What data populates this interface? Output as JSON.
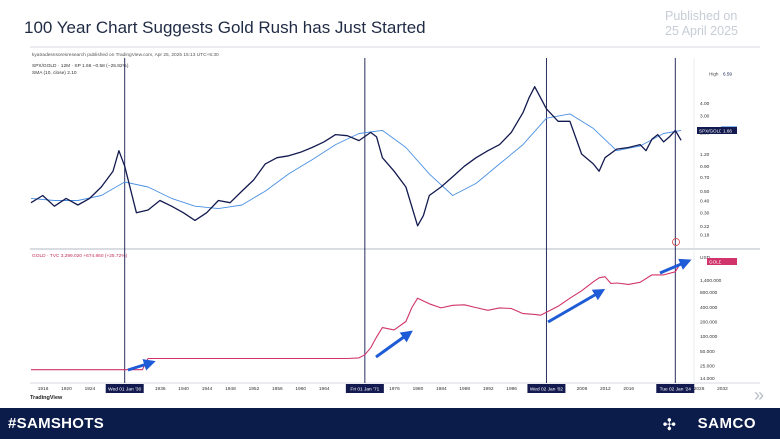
{
  "headline": "100 Year Chart Suggests Gold Rush has Just Started",
  "published_line1": "Published on",
  "published_line2": "25 April 2025",
  "footer": {
    "hashtag": "#SAMSHOTS",
    "brand": "SAMCO",
    "brand_icon": "samco-logo-icon",
    "next_icon": "double-chevron-right-icon"
  },
  "colors": {
    "navy": "#131a4f",
    "sma": "#4a90e2",
    "gold": "#d0346b",
    "arrow": "#1e5bd6",
    "footer": "#0b1b4a"
  },
  "chart_data": [
    {
      "type": "line",
      "meta_line": "kyatradesnsoresresearch published on TradingView.com, Apr 25, 2025 15:13 UTC+5:30",
      "legend": [
        "SPX/GOLD · 12M · SP  1.66  −0.58 (−25.82%)",
        "SMA (10, close)  2.10"
      ],
      "yaxis": {
        "scale": "log",
        "ticks": [
          "4.00",
          "3.00",
          "2.00",
          "1.20",
          "0.90",
          "0.70",
          "0.50",
          "0.40",
          "0.30",
          "0.22",
          "0.18"
        ],
        "ylim": [
          0.15,
          6.59
        ]
      },
      "badges": {
        "high_label": "High",
        "high_value": "6.59",
        "series_label": "SPX/GOLD",
        "series_value": "1.66",
        "sma_value": "2.10"
      },
      "series": [
        {
          "name": "SPX/GOLD",
          "x": [
            1914,
            1916,
            1918,
            1920,
            1922,
            1924,
            1926,
            1928,
            1929,
            1930,
            1932,
            1934,
            1936,
            1938,
            1940,
            1942,
            1944,
            1946,
            1948,
            1950,
            1952,
            1954,
            1956,
            1958,
            1960,
            1962,
            1964,
            1966,
            1968,
            1970,
            1972,
            1973,
            1974,
            1976,
            1978,
            1980,
            1981,
            1982,
            1984,
            1986,
            1988,
            1990,
            1992,
            1994,
            1996,
            1998,
            1999,
            2000,
            2002,
            2004,
            2006,
            2008,
            2010,
            2011,
            2012,
            2014,
            2016,
            2018,
            2019,
            2020,
            2021,
            2022,
            2023,
            2024,
            2025
          ],
          "values": [
            0.38,
            0.45,
            0.35,
            0.42,
            0.36,
            0.42,
            0.55,
            0.8,
            1.3,
            0.9,
            0.3,
            0.32,
            0.4,
            0.35,
            0.3,
            0.25,
            0.3,
            0.4,
            0.38,
            0.5,
            0.65,
            0.95,
            1.1,
            1.15,
            1.25,
            1.4,
            1.6,
            1.9,
            1.85,
            1.65,
            2.0,
            1.8,
            1.1,
            0.8,
            0.55,
            0.22,
            0.28,
            0.45,
            0.55,
            0.7,
            0.9,
            1.1,
            1.3,
            1.5,
            2.0,
            3.2,
            4.5,
            5.9,
            3.5,
            2.6,
            2.6,
            1.2,
            0.95,
            0.8,
            1.1,
            1.35,
            1.4,
            1.5,
            1.3,
            1.7,
            1.9,
            1.6,
            1.8,
            2.1,
            1.66
          ]
        },
        {
          "name": "SMA (10, close)",
          "x": [
            1914,
            1918,
            1922,
            1926,
            1930,
            1934,
            1938,
            1942,
            1946,
            1950,
            1954,
            1958,
            1962,
            1966,
            1970,
            1974,
            1978,
            1982,
            1986,
            1990,
            1994,
            1998,
            2002,
            2006,
            2010,
            2014,
            2018,
            2022,
            2025
          ],
          "values": [
            0.42,
            0.4,
            0.4,
            0.45,
            0.62,
            0.55,
            0.42,
            0.35,
            0.33,
            0.36,
            0.5,
            0.75,
            1.05,
            1.5,
            1.95,
            2.1,
            1.4,
            0.75,
            0.45,
            0.6,
            0.95,
            1.5,
            2.8,
            3.1,
            2.2,
            1.3,
            1.45,
            1.95,
            2.1
          ]
        }
      ]
    },
    {
      "type": "line",
      "legend": "GOLD · TVC  3,299.020  +674.860 (+25.72%)",
      "yaxis": {
        "scale": "log",
        "ticks": [
          "USD",
          "1,400.000",
          "800.000",
          "400.000",
          "200.000",
          "100.000",
          "50.000",
          "25.000",
          "14.000"
        ],
        "ylim": [
          14,
          3299
        ]
      },
      "badges": {
        "series_label": "GOLD"
      },
      "xaxis": {
        "ticks": [
          "1916",
          "1920",
          "1924",
          "1936",
          "1940",
          "1944",
          "1948",
          "1952",
          "1956",
          "1960",
          "1964",
          "1976",
          "1980",
          "1984",
          "1988",
          "1992",
          "1996",
          "2008",
          "2012",
          "2016",
          "2028",
          "2032"
        ]
      },
      "vlines": [
        {
          "x": 1930,
          "label": "Wed 01 Jan '30"
        },
        {
          "x": 1971,
          "label": "Fri 01 Jan '71"
        },
        {
          "x": 2002,
          "label": "Wed 02 Jan '02"
        },
        {
          "x": 2024,
          "label": "Tue 02 Jan '24"
        }
      ],
      "series": [
        {
          "name": "GOLD",
          "x": [
            1914,
            1933,
            1934,
            1968,
            1970,
            1971,
            1972,
            1973,
            1974,
            1976,
            1978,
            1979,
            1980,
            1982,
            1984,
            1986,
            1988,
            1990,
            1992,
            1994,
            1996,
            1998,
            2000,
            2001,
            2002,
            2004,
            2006,
            2008,
            2010,
            2011,
            2012,
            2013,
            2014,
            2016,
            2018,
            2020,
            2022,
            2024,
            2025
          ],
          "values": [
            20.7,
            20.7,
            35,
            35,
            36,
            42,
            58,
            97,
            150,
            135,
            200,
            380,
            600,
            460,
            380,
            430,
            440,
            385,
            340,
            380,
            370,
            290,
            280,
            270,
            310,
            410,
            600,
            850,
            1300,
            1570,
            1650,
            1200,
            1230,
            1150,
            1270,
            1800,
            1800,
            2080,
            3299
          ]
        }
      ],
      "arrows_annotation": "blue trend arrows"
    }
  ],
  "tradingview_label": "TradingView"
}
